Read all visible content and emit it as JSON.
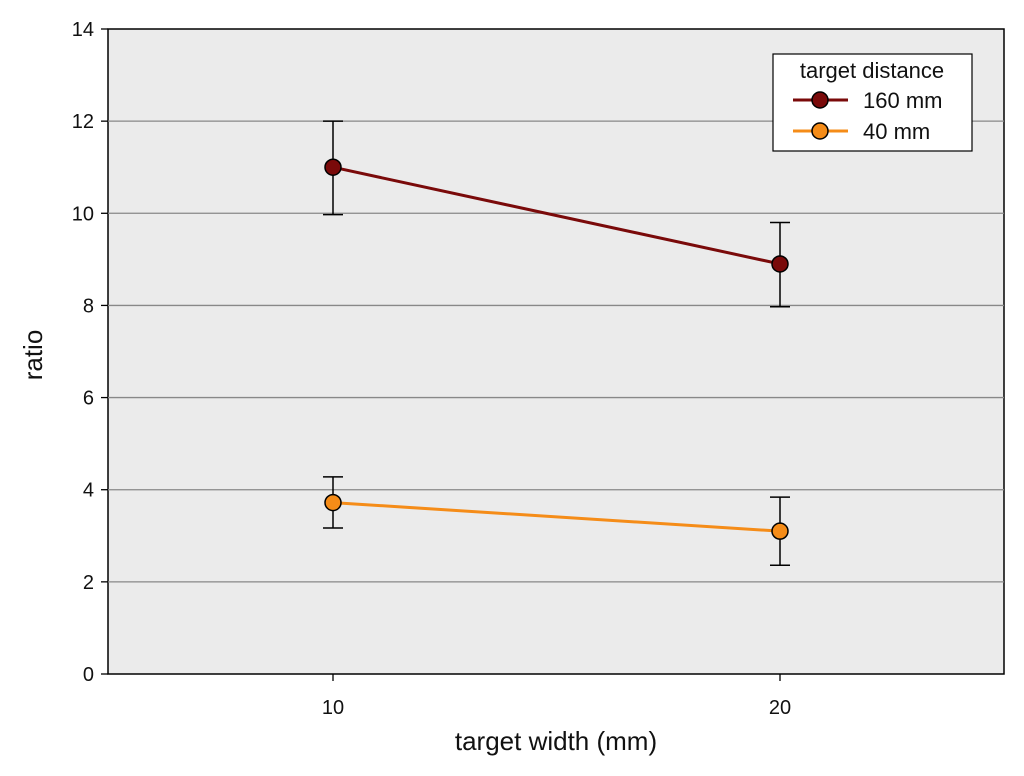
{
  "chart_data": {
    "type": "line",
    "title": "",
    "xlabel": "target width (mm)",
    "ylabel": "ratio",
    "categories": [
      "10",
      "20"
    ],
    "ylim": [
      0,
      14
    ],
    "yticks": [
      "0",
      "2",
      "4",
      "6",
      "8",
      "10",
      "12",
      "14"
    ],
    "grid": true,
    "legend": {
      "title": "target distance",
      "placement": "top-right"
    },
    "series": [
      {
        "name": "160 mm",
        "values": [
          11.0,
          8.9
        ],
        "error_low": [
          9.97,
          7.97
        ],
        "error_high": [
          12.0,
          9.8
        ],
        "color": "#7a0a0a"
      },
      {
        "name": "40 mm",
        "values": [
          3.72,
          3.1
        ],
        "error_low": [
          3.17,
          2.36
        ],
        "error_high": [
          4.28,
          3.84
        ],
        "color": "#f58c18"
      }
    ],
    "colors": {
      "plot_background": "#ebebeb",
      "grid": "#888888"
    }
  }
}
